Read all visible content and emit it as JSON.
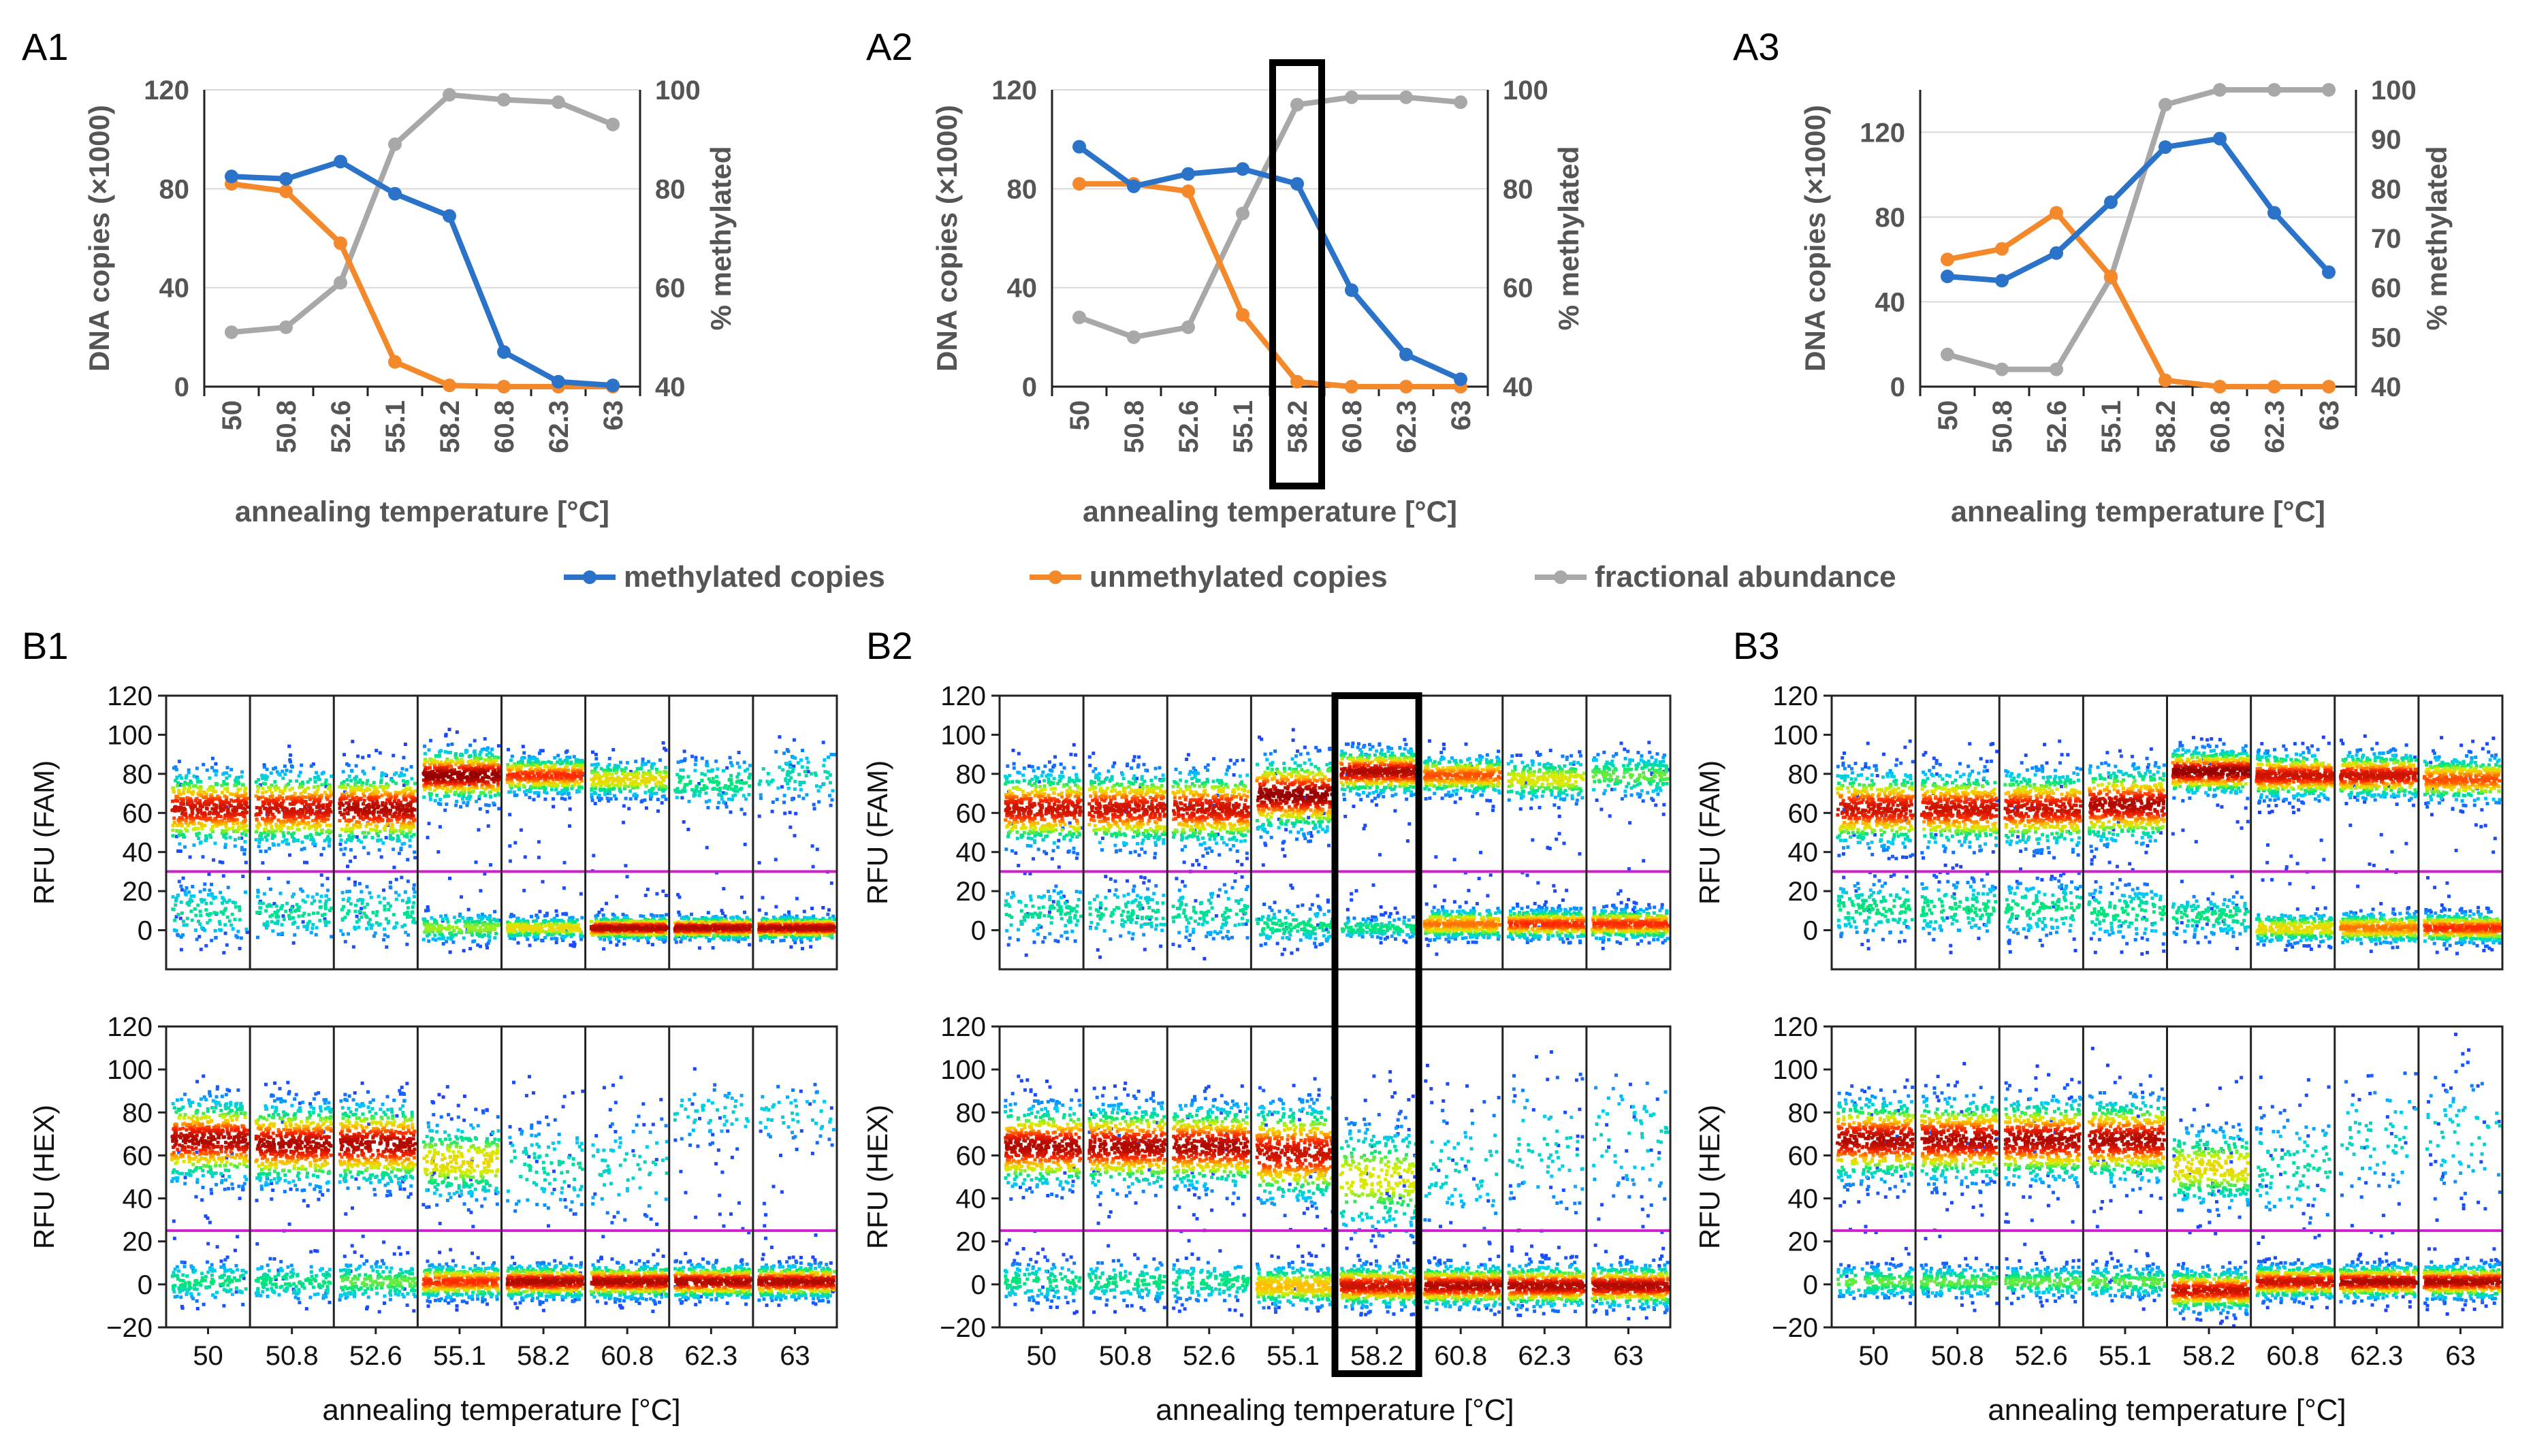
{
  "colors": {
    "methylated": "#2a73c8",
    "unmethylated": "#f4892c",
    "fractional": "#a8a8a8",
    "threshold": "#cc22cc",
    "axis_text": "#555555",
    "highlight": "#000000"
  },
  "legend": {
    "methylated": "methylated copies",
    "unmethylated": "unmethylated copies",
    "fractional": "fractional abundance"
  },
  "chart_data": [
    {
      "id": "A1",
      "panel_label": "A1",
      "type": "line",
      "categories": [
        "50",
        "50.8",
        "52.6",
        "55.1",
        "58.2",
        "60.8",
        "62.3",
        "63"
      ],
      "xlabel": "annealing temperature [°C]",
      "ylabel": "DNA copies (×1000)",
      "ylim": [
        0,
        120
      ],
      "yticks": [
        "0",
        "40",
        "80",
        "120"
      ],
      "ylabel2": "% methylated",
      "ylim2": [
        40,
        100
      ],
      "yticks2": [
        "40",
        "60",
        "80",
        "100"
      ],
      "grid": true,
      "highlight_category": null,
      "series": [
        {
          "name": "methylated copies",
          "axis": "left",
          "values": [
            85,
            84,
            91,
            78,
            69,
            14,
            2,
            0.5
          ]
        },
        {
          "name": "unmethylated copies",
          "axis": "left",
          "values": [
            82,
            79,
            58,
            10,
            0.5,
            0,
            0,
            0
          ]
        },
        {
          "name": "fractional abundance",
          "axis": "right",
          "values": [
            51,
            52,
            61,
            89,
            99,
            98,
            97.5,
            93
          ]
        }
      ]
    },
    {
      "id": "A2",
      "panel_label": "A2",
      "type": "line",
      "categories": [
        "50",
        "50.8",
        "52.6",
        "55.1",
        "58.2",
        "60.8",
        "62.3",
        "63"
      ],
      "xlabel": "annealing temperature [°C]",
      "ylabel": "DNA copies (×1000)",
      "ylim": [
        0,
        120
      ],
      "yticks": [
        "0",
        "40",
        "80",
        "120"
      ],
      "ylabel2": "% methylated",
      "ylim2": [
        40,
        100
      ],
      "yticks2": [
        "40",
        "60",
        "80",
        "100"
      ],
      "grid": true,
      "highlight_category": "58.2",
      "series": [
        {
          "name": "methylated copies",
          "axis": "left",
          "values": [
            97,
            81,
            86,
            88,
            82,
            39,
            13,
            3
          ]
        },
        {
          "name": "unmethylated copies",
          "axis": "left",
          "values": [
            82,
            82,
            79,
            29,
            2,
            0,
            0,
            0
          ]
        },
        {
          "name": "fractional abundance",
          "axis": "right",
          "values": [
            54,
            50,
            52,
            75,
            97,
            98.5,
            98.5,
            97.5
          ]
        }
      ]
    },
    {
      "id": "A3",
      "panel_label": "A3",
      "type": "line",
      "categories": [
        "50",
        "50.8",
        "52.6",
        "55.1",
        "58.2",
        "60.8",
        "62.3",
        "63"
      ],
      "xlabel": "annealing temperature [°C]",
      "ylabel": "DNA copies (×1000)",
      "ylim": [
        0,
        140
      ],
      "yticks": [
        "0",
        "40",
        "80",
        "120"
      ],
      "ylabel2": "% methylated",
      "ylim2": [
        40,
        100
      ],
      "yticks2": [
        "40",
        "50",
        "60",
        "70",
        "80",
        "90",
        "100"
      ],
      "grid": true,
      "highlight_category": null,
      "series": [
        {
          "name": "methylated copies",
          "axis": "left",
          "values": [
            52,
            50,
            63,
            87,
            113,
            117,
            82,
            54
          ]
        },
        {
          "name": "unmethylated copies",
          "axis": "left",
          "values": [
            60,
            65,
            82,
            52,
            3,
            0,
            0,
            0
          ]
        },
        {
          "name": "fractional abundance",
          "axis": "right",
          "values": [
            46.5,
            43.5,
            43.5,
            62,
            97,
            100,
            100,
            100
          ]
        }
      ]
    },
    {
      "id": "B1",
      "panel_label": "B1",
      "type": "scatter",
      "categories": [
        "50",
        "50.8",
        "52.6",
        "55.1",
        "58.2",
        "60.8",
        "62.3",
        "63"
      ],
      "xlabel": "annealing temperature [°C]",
      "highlight_category": null,
      "channels": [
        {
          "ylabel": "RFU (FAM)",
          "ylim": [
            -20,
            120
          ],
          "yticks": [
            "0",
            "20",
            "40",
            "60",
            "80",
            "100",
            "120"
          ],
          "threshold": 30,
          "clusters": [
            [
              {
                "y": 63,
                "sd": 10,
                "dens": 0.9
              },
              {
                "y": 10,
                "sd": 8,
                "dens": 0.15
              }
            ],
            [
              {
                "y": 63,
                "sd": 10,
                "dens": 0.9
              },
              {
                "y": 10,
                "sd": 8,
                "dens": 0.15
              }
            ],
            [
              {
                "y": 63,
                "sd": 10,
                "dens": 0.95
              },
              {
                "y": 10,
                "sd": 8,
                "dens": 0.15
              }
            ],
            [
              {
                "y": 80,
                "sd": 7,
                "dens": 1.0
              },
              {
                "y": 2,
                "sd": 4,
                "dens": 0.35
              }
            ],
            [
              {
                "y": 80,
                "sd": 5,
                "dens": 0.8
              },
              {
                "y": 2,
                "sd": 3,
                "dens": 0.5
              }
            ],
            [
              {
                "y": 78,
                "sd": 5,
                "dens": 0.5
              },
              {
                "y": 2,
                "sd": 3,
                "dens": 0.95
              }
            ],
            [
              {
                "y": 76,
                "sd": 7,
                "dens": 0.2
              },
              {
                "y": 2,
                "sd": 3,
                "dens": 0.95
              }
            ],
            [
              {
                "y": 80,
                "sd": 8,
                "dens": 0.1
              },
              {
                "y": 2,
                "sd": 3,
                "dens": 0.95
              }
            ]
          ]
        },
        {
          "ylabel": "RFU (HEX)",
          "ylim": [
            -20,
            120
          ],
          "yticks": [
            "−20",
            "0",
            "20",
            "40",
            "60",
            "80",
            "100",
            "120"
          ],
          "threshold": 25,
          "clusters": [
            [
              {
                "y": 68,
                "sd": 10,
                "dens": 0.95
              },
              {
                "y": 2,
                "sd": 5,
                "dens": 0.2
              }
            ],
            [
              {
                "y": 66,
                "sd": 10,
                "dens": 0.95
              },
              {
                "y": 2,
                "sd": 5,
                "dens": 0.2
              }
            ],
            [
              {
                "y": 66,
                "sd": 10,
                "dens": 0.95
              },
              {
                "y": 2,
                "sd": 5,
                "dens": 0.3
              }
            ],
            [
              {
                "y": 58,
                "sd": 10,
                "dens": 0.5
              },
              {
                "y": 2,
                "sd": 4,
                "dens": 0.8
              }
            ],
            [
              {
                "y": 55,
                "sd": 12,
                "dens": 0.12
              },
              {
                "y": 2,
                "sd": 4,
                "dens": 0.95
              }
            ],
            [
              {
                "y": 55,
                "sd": 14,
                "dens": 0.05
              },
              {
                "y": 2,
                "sd": 4,
                "dens": 0.95
              }
            ],
            [
              {
                "y": 80,
                "sd": 8,
                "dens": 0.03
              },
              {
                "y": 2,
                "sd": 4,
                "dens": 0.95
              }
            ],
            [
              {
                "y": 80,
                "sd": 8,
                "dens": 0.02
              },
              {
                "y": 2,
                "sd": 4,
                "dens": 0.95
              }
            ]
          ]
        }
      ]
    },
    {
      "id": "B2",
      "panel_label": "B2",
      "type": "scatter",
      "categories": [
        "50",
        "50.8",
        "52.6",
        "55.1",
        "58.2",
        "60.8",
        "62.3",
        "63"
      ],
      "xlabel": "annealing temperature [°C]",
      "highlight_category": "58.2",
      "channels": [
        {
          "ylabel": "RFU (FAM)",
          "ylim": [
            -20,
            120
          ],
          "yticks": [
            "0",
            "20",
            "40",
            "60",
            "80",
            "100",
            "120"
          ],
          "threshold": 30,
          "clusters": [
            [
              {
                "y": 63,
                "sd": 10,
                "dens": 0.9
              },
              {
                "y": 10,
                "sd": 8,
                "dens": 0.15
              }
            ],
            [
              {
                "y": 63,
                "sd": 10,
                "dens": 0.9
              },
              {
                "y": 10,
                "sd": 8,
                "dens": 0.15
              }
            ],
            [
              {
                "y": 63,
                "sd": 10,
                "dens": 0.9
              },
              {
                "y": 10,
                "sd": 8,
                "dens": 0.15
              }
            ],
            [
              {
                "y": 70,
                "sd": 10,
                "dens": 1.0
              },
              {
                "y": 3,
                "sd": 5,
                "dens": 0.2
              }
            ],
            [
              {
                "y": 82,
                "sd": 6,
                "dens": 0.95
              },
              {
                "y": 2,
                "sd": 3,
                "dens": 0.2
              }
            ],
            [
              {
                "y": 80,
                "sd": 5,
                "dens": 0.75
              },
              {
                "y": 4,
                "sd": 4,
                "dens": 0.7
              }
            ],
            [
              {
                "y": 78,
                "sd": 6,
                "dens": 0.45
              },
              {
                "y": 4,
                "sd": 4,
                "dens": 0.8
              }
            ],
            [
              {
                "y": 80,
                "sd": 6,
                "dens": 0.3
              },
              {
                "y": 4,
                "sd": 4,
                "dens": 0.8
              }
            ]
          ]
        },
        {
          "ylabel": "RFU (HEX)",
          "ylim": [
            -20,
            120
          ],
          "yticks": [
            "−20",
            "0",
            "20",
            "40",
            "60",
            "80",
            "100",
            "120"
          ],
          "threshold": 25,
          "clusters": [
            [
              {
                "y": 65,
                "sd": 10,
                "dens": 0.95
              },
              {
                "y": 2,
                "sd": 5,
                "dens": 0.2
              }
            ],
            [
              {
                "y": 65,
                "sd": 10,
                "dens": 0.95
              },
              {
                "y": 2,
                "sd": 5,
                "dens": 0.2
              }
            ],
            [
              {
                "y": 65,
                "sd": 10,
                "dens": 0.95
              },
              {
                "y": 2,
                "sd": 5,
                "dens": 0.2
              }
            ],
            [
              {
                "y": 62,
                "sd": 12,
                "dens": 0.9
              },
              {
                "y": 0,
                "sd": 5,
                "dens": 0.6
              }
            ],
            [
              {
                "y": 50,
                "sd": 14,
                "dens": 0.45
              },
              {
                "y": 0,
                "sd": 5,
                "dens": 0.9
              }
            ],
            [
              {
                "y": 55,
                "sd": 16,
                "dens": 0.06
              },
              {
                "y": 0,
                "sd": 5,
                "dens": 0.95
              }
            ],
            [
              {
                "y": 65,
                "sd": 18,
                "dens": 0.05
              },
              {
                "y": 0,
                "sd": 5,
                "dens": 0.95
              }
            ],
            [
              {
                "y": 70,
                "sd": 18,
                "dens": 0.05
              },
              {
                "y": 0,
                "sd": 5,
                "dens": 0.95
              }
            ]
          ]
        }
      ]
    },
    {
      "id": "B3",
      "panel_label": "B3",
      "type": "scatter",
      "categories": [
        "50",
        "50.8",
        "52.6",
        "55.1",
        "58.2",
        "60.8",
        "62.3",
        "63"
      ],
      "xlabel": "annealing temperature [°C]",
      "highlight_category": null,
      "channels": [
        {
          "ylabel": "RFU (FAM)",
          "ylim": [
            -20,
            120
          ],
          "yticks": [
            "0",
            "20",
            "40",
            "60",
            "80",
            "100",
            "120"
          ],
          "threshold": 30,
          "clusters": [
            [
              {
                "y": 63,
                "sd": 10,
                "dens": 0.9
              },
              {
                "y": 12,
                "sd": 8,
                "dens": 0.2
              }
            ],
            [
              {
                "y": 63,
                "sd": 10,
                "dens": 0.9
              },
              {
                "y": 12,
                "sd": 8,
                "dens": 0.2
              }
            ],
            [
              {
                "y": 63,
                "sd": 10,
                "dens": 0.9
              },
              {
                "y": 12,
                "sd": 8,
                "dens": 0.2
              }
            ],
            [
              {
                "y": 65,
                "sd": 10,
                "dens": 0.95
              },
              {
                "y": 10,
                "sd": 8,
                "dens": 0.2
              }
            ],
            [
              {
                "y": 82,
                "sd": 6,
                "dens": 1.0
              },
              {
                "y": 8,
                "sd": 6,
                "dens": 0.2
              }
            ],
            [
              {
                "y": 80,
                "sd": 6,
                "dens": 0.9
              },
              {
                "y": 2,
                "sd": 4,
                "dens": 0.5
              }
            ],
            [
              {
                "y": 80,
                "sd": 6,
                "dens": 0.9
              },
              {
                "y": 2,
                "sd": 4,
                "dens": 0.7
              }
            ],
            [
              {
                "y": 78,
                "sd": 6,
                "dens": 0.75
              },
              {
                "y": 2,
                "sd": 4,
                "dens": 0.8
              }
            ]
          ]
        },
        {
          "ylabel": "RFU (HEX)",
          "ylim": [
            -20,
            120
          ],
          "yticks": [
            "−20",
            "0",
            "20",
            "40",
            "60",
            "80",
            "100",
            "120"
          ],
          "threshold": 25,
          "clusters": [
            [
              {
                "y": 68,
                "sd": 10,
                "dens": 0.95
              },
              {
                "y": 2,
                "sd": 4,
                "dens": 0.3
              }
            ],
            [
              {
                "y": 68,
                "sd": 10,
                "dens": 0.95
              },
              {
                "y": 2,
                "sd": 4,
                "dens": 0.3
              }
            ],
            [
              {
                "y": 68,
                "sd": 10,
                "dens": 0.95
              },
              {
                "y": 2,
                "sd": 4,
                "dens": 0.3
              }
            ],
            [
              {
                "y": 68,
                "sd": 10,
                "dens": 0.95
              },
              {
                "y": 2,
                "sd": 4,
                "dens": 0.3
              }
            ],
            [
              {
                "y": 55,
                "sd": 10,
                "dens": 0.5
              },
              {
                "y": -2,
                "sd": 5,
                "dens": 0.9
              }
            ],
            [
              {
                "y": 55,
                "sd": 14,
                "dens": 0.12
              },
              {
                "y": 2,
                "sd": 4,
                "dens": 0.9
              }
            ],
            [
              {
                "y": 70,
                "sd": 16,
                "dens": 0.05
              },
              {
                "y": 2,
                "sd": 4,
                "dens": 0.95
              }
            ],
            [
              {
                "y": 70,
                "sd": 16,
                "dens": 0.05
              },
              {
                "y": 2,
                "sd": 4,
                "dens": 0.95
              }
            ]
          ]
        }
      ]
    }
  ]
}
